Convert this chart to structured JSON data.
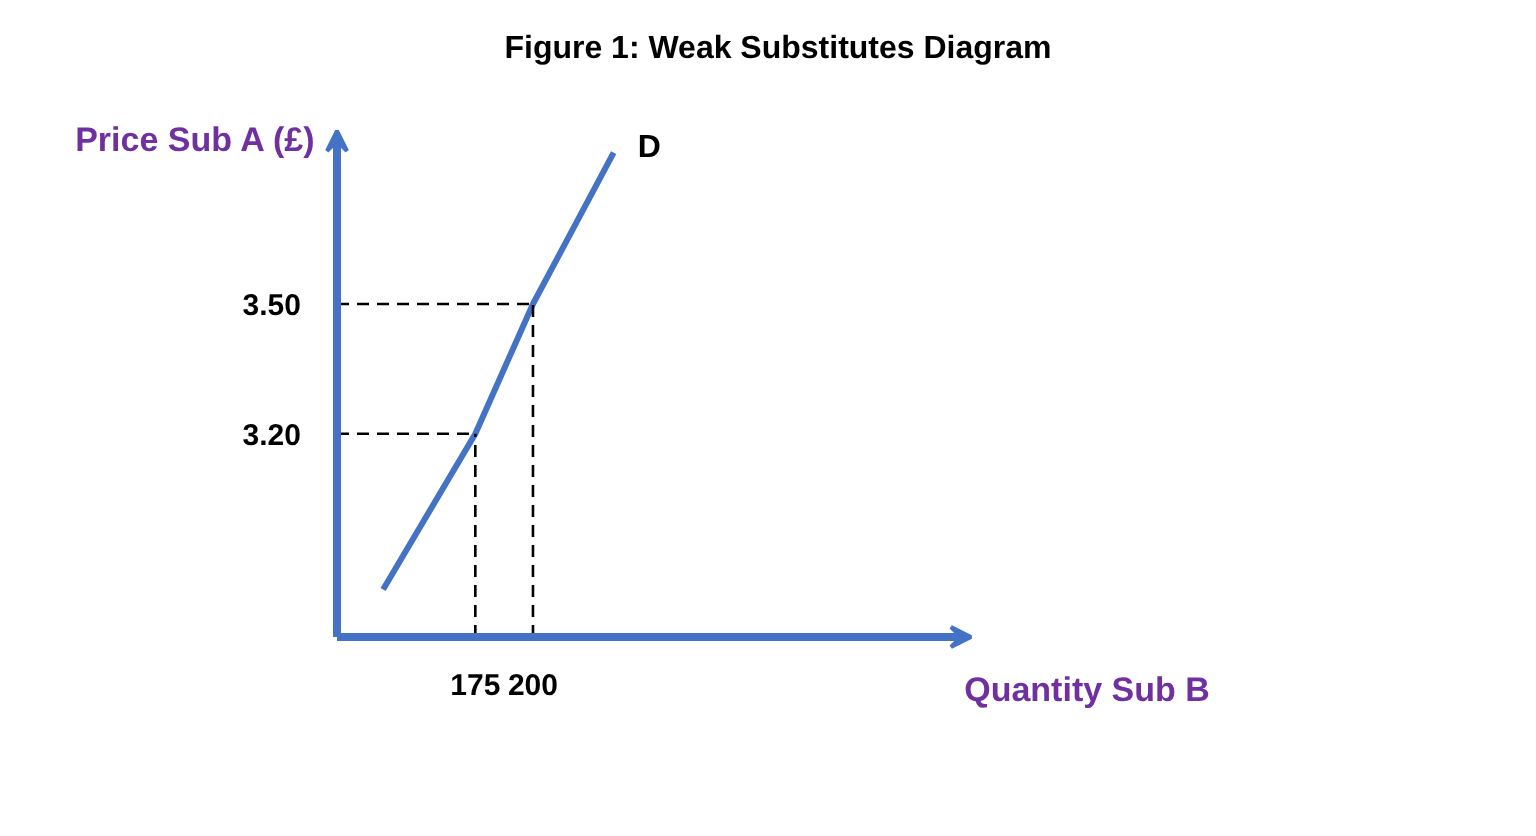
{
  "chart_data": {
    "type": "line",
    "title": "Figure 1: Weak Substitutes Diagram",
    "xlabel": "Quantity Sub B",
    "ylabel": "Price Sub A (£)",
    "xlim": [
      115,
      390
    ],
    "ylim": [
      2.73,
      3.9
    ],
    "xticks": [
      175,
      200
    ],
    "yticks": [
      {
        "value": 3.2,
        "label": "3.20"
      },
      {
        "value": 3.5,
        "label": "3.50"
      }
    ],
    "series": [
      {
        "name": "D",
        "color": "#4472c4",
        "x": [
          135,
          175,
          200,
          235
        ],
        "values": [
          2.84,
          3.2,
          3.5,
          3.85
        ]
      }
    ],
    "ref_lines": [
      {
        "axis": "y",
        "value": 3.5,
        "color": "#000000",
        "line_style": "dashed"
      },
      {
        "axis": "y",
        "value": 3.2,
        "color": "#000000",
        "line_style": "dashed"
      },
      {
        "axis": "x",
        "value": 175,
        "color": "#000000",
        "line_style": "dashed"
      },
      {
        "axis": "x",
        "value": 200,
        "color": "#000000",
        "line_style": "dashed"
      }
    ],
    "grid": false,
    "marker": "none",
    "line_style": "solid"
  }
}
